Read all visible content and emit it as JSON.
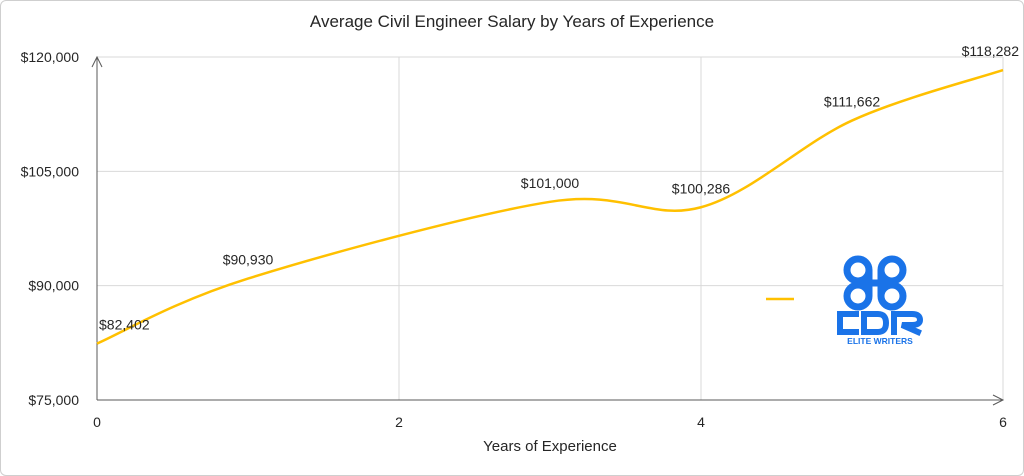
{
  "chart_data": {
    "type": "line",
    "title": "Average Civil Engineer Salary by Years of Experience",
    "xlabel": "Years of Experience",
    "ylabel": "",
    "x": [
      0,
      1,
      3,
      4,
      5,
      6
    ],
    "series": [
      {
        "values": [
          82402,
          90930,
          101000,
          100286,
          111662,
          118282
        ],
        "data_labels": [
          "$82,402",
          "$90,930",
          "$101,000",
          "$100,286",
          "$111,662",
          "$118,282"
        ],
        "color": "#FFC000"
      }
    ],
    "xlim": [
      0,
      6
    ],
    "ylim": [
      75000,
      120000
    ],
    "x_ticks": [
      {
        "value": 0,
        "label": "0"
      },
      {
        "value": 2,
        "label": "2"
      },
      {
        "value": 4,
        "label": "4"
      },
      {
        "value": 6,
        "label": "6"
      }
    ],
    "y_ticks": [
      {
        "value": 75000,
        "label": "$75,000"
      },
      {
        "value": 90000,
        "label": "$90,000"
      },
      {
        "value": 105000,
        "label": "$105,000"
      },
      {
        "value": 120000,
        "label": "$120,000"
      }
    ],
    "grid": true,
    "legend_position": "right",
    "colors": {
      "line": "#FFC000",
      "grid": "#d9d9d9",
      "axis": "#595959",
      "text": "#262626",
      "logo": "#1A73E8"
    }
  },
  "watermark": {
    "label": "CDR ELITE WRITERS",
    "icon": "cdr-elite-writers-logo"
  }
}
